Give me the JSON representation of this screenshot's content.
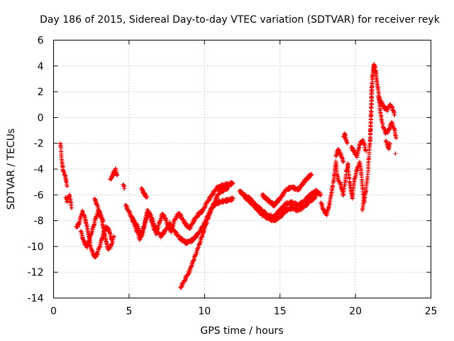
{
  "chart_data": {
    "type": "scatter",
    "title": "Day 186 of 2015, Sidereal Day-to-day VTEC variation (SDTVAR) for receiver reyk",
    "xlabel": "GPS time / hours",
    "ylabel": "SDTVAR / TECUs",
    "xlim": [
      0,
      25
    ],
    "ylim": [
      -14,
      6
    ],
    "x_ticks": [
      0,
      5,
      10,
      15,
      20,
      25
    ],
    "x_tick_labels": [
      "0",
      "5",
      "10",
      "15",
      "20",
      "25"
    ],
    "y_ticks": [
      -14,
      -12,
      -10,
      -8,
      -6,
      -4,
      -2,
      0,
      2,
      4,
      6
    ],
    "y_tick_labels": [
      "-14",
      "-12",
      "-10",
      "-8",
      "-6",
      "-4",
      "-2",
      "0",
      "2",
      "4",
      "6"
    ],
    "grid": true,
    "marker": "+",
    "color": "#ff0000",
    "series": [
      {
        "name": "receiver reyk",
        "segments": [
          [
            [
              0.45,
              -2.0
            ],
            [
              0.5,
              -2.6
            ],
            [
              0.55,
              -3.4
            ],
            [
              0.6,
              -3.9
            ],
            [
              0.7,
              -4.3
            ],
            [
              0.8,
              -4.7
            ],
            [
              0.9,
              -5.3
            ]
          ],
          [
            [
              0.8,
              -6.2
            ],
            [
              0.9,
              -6.5
            ],
            [
              1.05,
              -6.0
            ],
            [
              1.2,
              -7.0
            ]
          ],
          [
            [
              1.5,
              -8.5
            ],
            [
              1.7,
              -8.2
            ],
            [
              1.9,
              -7.3
            ],
            [
              2.1,
              -7.8
            ],
            [
              2.3,
              -9.0
            ],
            [
              2.5,
              -10.2
            ],
            [
              2.7,
              -10.8
            ],
            [
              2.9,
              -10.6
            ],
            [
              3.1,
              -9.8
            ],
            [
              3.3,
              -9.0
            ],
            [
              3.5,
              -8.5
            ],
            [
              3.7,
              -8.8
            ],
            [
              3.85,
              -9.5
            ]
          ],
          [
            [
              1.8,
              -8.8
            ],
            [
              2.0,
              -9.6
            ],
            [
              2.2,
              -10.0
            ],
            [
              2.4,
              -9.4
            ],
            [
              2.6,
              -8.6
            ],
            [
              2.8,
              -7.8
            ],
            [
              3.0,
              -7.2
            ],
            [
              3.2,
              -7.9
            ],
            [
              3.4,
              -9.2
            ],
            [
              3.6,
              -10.2
            ],
            [
              3.8,
              -10.0
            ],
            [
              4.0,
              -9.2
            ]
          ],
          [
            [
              2.7,
              -6.3
            ],
            [
              2.9,
              -6.8
            ],
            [
              3.1,
              -7.6
            ],
            [
              3.3,
              -8.0
            ]
          ],
          [
            [
              3.75,
              -4.8
            ],
            [
              3.9,
              -4.5
            ],
            [
              4.1,
              -4.0
            ],
            [
              4.2,
              -4.5
            ]
          ],
          [
            [
              4.6,
              -5.2
            ],
            [
              4.7,
              -5.5
            ]
          ],
          [
            [
              4.75,
              -6.8
            ],
            [
              5.0,
              -7.3
            ],
            [
              5.3,
              -8.0
            ],
            [
              5.6,
              -8.5
            ],
            [
              5.8,
              -9.2
            ],
            [
              6.0,
              -8.4
            ],
            [
              6.2,
              -7.2
            ],
            [
              6.4,
              -7.6
            ],
            [
              6.6,
              -8.5
            ],
            [
              6.8,
              -9.0
            ],
            [
              7.0,
              -8.2
            ],
            [
              7.2,
              -7.5
            ],
            [
              7.4,
              -7.8
            ],
            [
              7.6,
              -8.5
            ],
            [
              7.8,
              -8.8
            ],
            [
              8.0,
              -8.0
            ],
            [
              8.3,
              -7.4
            ],
            [
              8.7,
              -8.2
            ],
            [
              9.0,
              -8.6
            ],
            [
              9.3,
              -8.0
            ],
            [
              9.6,
              -7.5
            ],
            [
              9.9,
              -7.2
            ],
            [
              10.2,
              -6.5
            ],
            [
              10.5,
              -6.0
            ],
            [
              10.8,
              -5.5
            ],
            [
              11.1,
              -5.3
            ],
            [
              11.5,
              -5.2
            ],
            [
              11.9,
              -5.1
            ]
          ],
          [
            [
              5.1,
              -7.6
            ],
            [
              5.4,
              -8.4
            ],
            [
              5.7,
              -9.4
            ],
            [
              5.9,
              -9.0
            ],
            [
              6.1,
              -8.0
            ],
            [
              6.3,
              -7.3
            ],
            [
              6.5,
              -7.8
            ],
            [
              6.8,
              -8.7
            ],
            [
              7.1,
              -9.2
            ],
            [
              7.4,
              -8.8
            ],
            [
              7.7,
              -8.2
            ],
            [
              8.0,
              -8.8
            ],
            [
              8.4,
              -9.4
            ],
            [
              8.8,
              -9.7
            ],
            [
              9.2,
              -9.5
            ],
            [
              9.6,
              -9.0
            ],
            [
              10.0,
              -8.2
            ],
            [
              10.3,
              -7.4
            ],
            [
              10.6,
              -6.8
            ],
            [
              10.9,
              -6.6
            ],
            [
              11.2,
              -6.5
            ],
            [
              11.6,
              -6.4
            ],
            [
              11.9,
              -6.3
            ]
          ],
          [
            [
              5.8,
              -5.5
            ],
            [
              6.0,
              -5.9
            ],
            [
              6.2,
              -6.2
            ]
          ],
          [
            [
              8.4,
              -13.2
            ],
            [
              8.7,
              -12.6
            ],
            [
              9.0,
              -11.9
            ],
            [
              9.3,
              -11.0
            ],
            [
              9.6,
              -10.0
            ],
            [
              9.9,
              -9.0
            ],
            [
              10.2,
              -7.9
            ],
            [
              10.5,
              -7.0
            ],
            [
              10.8,
              -6.2
            ],
            [
              11.0,
              -5.8
            ],
            [
              11.3,
              -5.6
            ],
            [
              11.6,
              -5.4
            ]
          ],
          [
            [
              12.3,
              -5.7
            ],
            [
              12.6,
              -6.0
            ],
            [
              13.0,
              -6.3
            ],
            [
              13.4,
              -6.8
            ],
            [
              13.8,
              -7.2
            ],
            [
              14.2,
              -7.6
            ],
            [
              14.6,
              -7.7
            ],
            [
              15.0,
              -7.2
            ],
            [
              15.4,
              -6.7
            ],
            [
              15.8,
              -6.6
            ],
            [
              16.2,
              -6.8
            ],
            [
              16.6,
              -6.5
            ],
            [
              17.0,
              -6.0
            ],
            [
              17.4,
              -5.7
            ],
            [
              17.7,
              -6.0
            ]
          ],
          [
            [
              12.6,
              -6.1
            ],
            [
              13.0,
              -6.5
            ],
            [
              13.4,
              -7.0
            ],
            [
              13.8,
              -7.5
            ],
            [
              14.2,
              -7.8
            ],
            [
              14.6,
              -8.0
            ],
            [
              15.0,
              -7.7
            ],
            [
              15.4,
              -7.2
            ],
            [
              15.8,
              -7.0
            ],
            [
              16.2,
              -7.2
            ],
            [
              16.6,
              -6.9
            ],
            [
              17.0,
              -6.5
            ],
            [
              17.4,
              -6.1
            ]
          ],
          [
            [
              13.8,
              -6.0
            ],
            [
              14.2,
              -6.4
            ],
            [
              14.6,
              -6.8
            ],
            [
              15.0,
              -6.3
            ],
            [
              15.4,
              -5.6
            ],
            [
              15.8,
              -5.4
            ],
            [
              16.2,
              -5.6
            ],
            [
              16.6,
              -5.0
            ],
            [
              16.9,
              -4.6
            ],
            [
              17.1,
              -4.4
            ]
          ],
          [
            [
              17.7,
              -6.6
            ],
            [
              17.9,
              -7.2
            ],
            [
              18.1,
              -7.5
            ],
            [
              18.3,
              -6.6
            ],
            [
              18.5,
              -5.2
            ],
            [
              18.6,
              -4.5
            ],
            [
              18.7,
              -3.4
            ],
            [
              18.8,
              -4.6
            ],
            [
              19.0,
              -5.2
            ],
            [
              19.2,
              -6.0
            ],
            [
              19.4,
              -4.2
            ],
            [
              19.5,
              -3.6
            ],
            [
              19.6,
              -5.0
            ],
            [
              19.8,
              -6.2
            ],
            [
              19.9,
              -5.0
            ],
            [
              20.1,
              -4.0
            ],
            [
              20.3,
              -3.5
            ],
            [
              20.4,
              -4.5
            ],
            [
              20.5,
              -5.8
            ],
            [
              20.6,
              -6.6
            ]
          ],
          [
            [
              18.7,
              -3.0
            ],
            [
              18.85,
              -2.5
            ],
            [
              19.0,
              -2.8
            ],
            [
              19.2,
              -3.4
            ]
          ],
          [
            [
              19.2,
              -1.5
            ],
            [
              19.3,
              -1.3
            ],
            [
              19.45,
              -2.0
            ]
          ],
          [
            [
              19.7,
              -2.3
            ],
            [
              19.9,
              -2.6
            ],
            [
              20.1,
              -3.0
            ],
            [
              20.3,
              -2.0
            ],
            [
              20.5,
              -1.8
            ],
            [
              20.7,
              -2.6
            ]
          ],
          [
            [
              20.45,
              -7.2
            ],
            [
              20.5,
              -6.8
            ],
            [
              20.6,
              -6.2
            ],
            [
              20.7,
              -5.6
            ],
            [
              20.8,
              -4.6
            ],
            [
              20.9,
              -3.0
            ],
            [
              21.0,
              -1.0
            ],
            [
              21.05,
              1.5
            ],
            [
              21.1,
              3.0
            ],
            [
              21.2,
              4.0
            ],
            [
              21.3,
              3.8
            ],
            [
              21.4,
              3.0
            ],
            [
              21.5,
              2.2
            ],
            [
              21.6,
              1.0
            ],
            [
              21.7,
              0.0
            ],
            [
              21.8,
              -0.6
            ],
            [
              22.0,
              -1.2
            ],
            [
              22.2,
              -1.0
            ],
            [
              22.4,
              -0.4
            ],
            [
              22.6,
              -1.0
            ],
            [
              22.7,
              -1.6
            ]
          ],
          [
            [
              20.95,
              -2.2
            ],
            [
              21.0,
              -0.8
            ],
            [
              21.05,
              0.6
            ],
            [
              21.1,
              2.2
            ],
            [
              21.15,
              3.4
            ],
            [
              21.25,
              4.1
            ],
            [
              21.35,
              3.6
            ]
          ],
          [
            [
              21.5,
              1.6
            ],
            [
              21.7,
              1.2
            ],
            [
              21.9,
              0.8
            ],
            [
              22.1,
              0.6
            ],
            [
              22.3,
              1.0
            ],
            [
              22.5,
              0.6
            ],
            [
              22.6,
              0.2
            ]
          ],
          [
            [
              22.0,
              -1.8
            ],
            [
              22.2,
              -2.4
            ],
            [
              22.3,
              -2.0
            ]
          ],
          [
            [
              22.65,
              -2.8
            ]
          ]
        ]
      }
    ]
  }
}
